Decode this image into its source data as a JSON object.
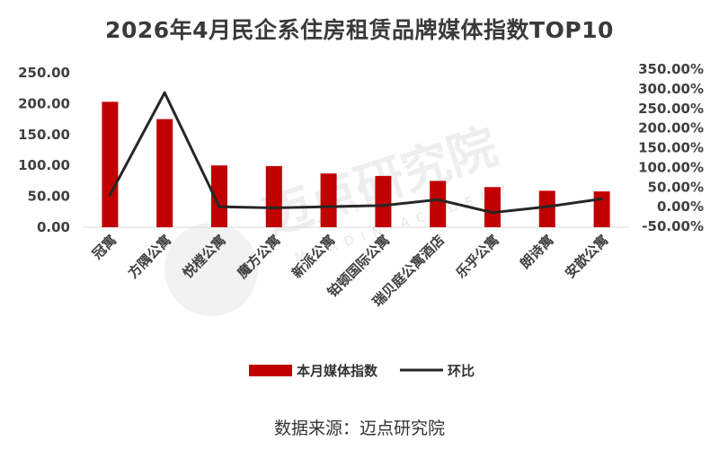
{
  "chart_data": {
    "type": "bar",
    "title": "2026年4月民企系住房租赁品牌媒体指数TOP10",
    "categories": [
      "冠寓",
      "方隅公寓",
      "悦樘公寓",
      "魔方公寓",
      "新派公寓",
      "铂顿国际公寓",
      "瑞贝庭公寓酒店",
      "乐乎公寓",
      "朗诗寓",
      "安歆公寓"
    ],
    "series": [
      {
        "name": "本月媒体指数",
        "type": "bar",
        "axis": "left",
        "color": "#c00000",
        "values": [
          203,
          175,
          100,
          99,
          87,
          83,
          75,
          65,
          59,
          58
        ]
      },
      {
        "name": "环比",
        "type": "line",
        "axis": "right",
        "color": "#262626",
        "values": [
          30,
          290,
          0,
          -3,
          0,
          3,
          18,
          -15,
          0,
          20
        ]
      }
    ],
    "y_left": {
      "min": 0,
      "max": 250,
      "ticks": [
        "0.00",
        "50.00",
        "100.00",
        "150.00",
        "200.00",
        "250.00"
      ]
    },
    "y_right": {
      "min": -50,
      "max": 350,
      "ticks": [
        "-50.00%",
        "0.00%",
        "50.00%",
        "100.00%",
        "150.00%",
        "200.00%",
        "250.00%",
        "300.00%",
        "350.00%"
      ]
    },
    "legend_position": "bottom",
    "grid": false
  },
  "source_text": "数据来源：迈点研究院",
  "watermark": {
    "text": "迈点研究院",
    "subtext": "MEADIN ACADEMY"
  }
}
